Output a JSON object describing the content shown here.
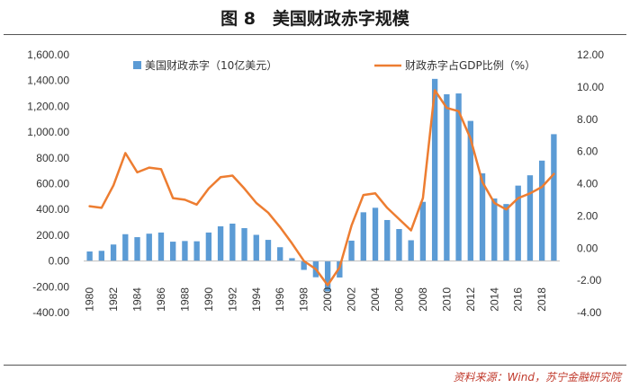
{
  "figure": {
    "title": "图 8　美国财政赤字规模",
    "source": "资料来源：Wind，苏宁金融研究院"
  },
  "colors": {
    "bar": "#5b9bd5",
    "line": "#ed7d31",
    "source_text": "#c0392b"
  },
  "chart_data": {
    "type": "bar",
    "title": "",
    "x": [
      1980,
      1981,
      1982,
      1983,
      1984,
      1985,
      1986,
      1987,
      1988,
      1989,
      1990,
      1991,
      1992,
      1993,
      1994,
      1995,
      1996,
      1997,
      1998,
      1999,
      2000,
      2001,
      2002,
      2003,
      2004,
      2005,
      2006,
      2007,
      2008,
      2009,
      2010,
      2011,
      2012,
      2013,
      2014,
      2015,
      2016,
      2017,
      2018,
      2019
    ],
    "x_tick_labels": [
      "1980",
      "1982",
      "1984",
      "1986",
      "1988",
      "1990",
      "1992",
      "1994",
      "1996",
      "1998",
      "2000",
      "2002",
      "2004",
      "2006",
      "2008",
      "2010",
      "2012",
      "2014",
      "2016",
      "2018"
    ],
    "series": [
      {
        "name": "美国财政赤字（10亿美元）",
        "type": "bar",
        "axis": "left",
        "values": [
          74,
          79,
          128,
          208,
          185,
          212,
          221,
          150,
          155,
          153,
          221,
          269,
          290,
          255,
          203,
          164,
          107,
          22,
          -69,
          -126,
          -236,
          -128,
          158,
          378,
          413,
          318,
          248,
          161,
          459,
          1413,
          1294,
          1300,
          1087,
          680,
          485,
          442,
          585,
          665,
          779,
          984
        ]
      },
      {
        "name": "财政赤字占GDP比例（%）",
        "type": "line",
        "axis": "right",
        "values": [
          2.6,
          2.5,
          3.9,
          5.9,
          4.7,
          5.0,
          4.9,
          3.1,
          3.0,
          2.7,
          3.7,
          4.4,
          4.5,
          3.7,
          2.8,
          2.2,
          1.3,
          0.3,
          -0.8,
          -1.3,
          -2.3,
          -1.2,
          1.4,
          3.3,
          3.4,
          2.5,
          1.8,
          1.1,
          3.1,
          9.8,
          8.7,
          8.5,
          6.8,
          4.1,
          2.8,
          2.4,
          3.1,
          3.4,
          3.8,
          4.6
        ]
      }
    ],
    "y_left": {
      "min": -400,
      "max": 1600,
      "step": 200,
      "tick_labels": [
        "-400.00",
        "-200.00",
        "0.00",
        "200.00",
        "400.00",
        "600.00",
        "800.00",
        "1,000.00",
        "1,200.00",
        "1,400.00",
        "1,600.00"
      ]
    },
    "y_right": {
      "min": -4,
      "max": 12,
      "step": 2,
      "tick_labels": [
        "-4.00",
        "-2.00",
        "0.00",
        "2.00",
        "4.00",
        "6.00",
        "8.00",
        "10.00",
        "12.00"
      ]
    },
    "grid": false,
    "legend": "top"
  }
}
